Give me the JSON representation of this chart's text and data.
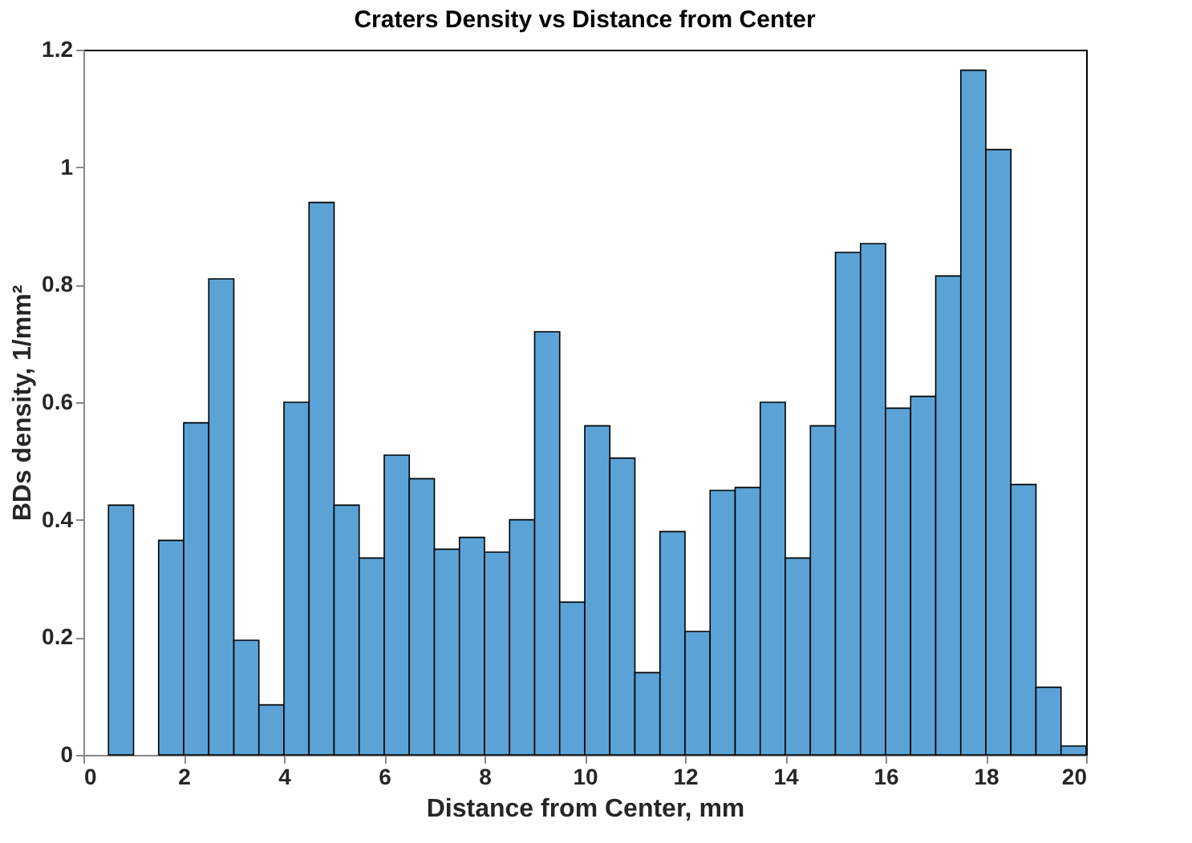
{
  "chart_data": {
    "type": "histogram",
    "title": "Craters Density vs Distance from Center",
    "xlabel": "Distance from Center, mm",
    "ylabel": "BDs density, 1/mm²",
    "color": "#5ba3d6",
    "bins": [
      0,
      0.5,
      1,
      1.5,
      2,
      2.5,
      3,
      3.5,
      4,
      4.5,
      5,
      5.5,
      6,
      6.5,
      7,
      7.5,
      8,
      8.5,
      9,
      9.5,
      10,
      10.5,
      11,
      11.5,
      12,
      12.5,
      13,
      13.5,
      14,
      14.5,
      15,
      15.5,
      16,
      16.5,
      17,
      17.5,
      18,
      18.5,
      19,
      19.5,
      20
    ],
    "values": [
      0,
      0.425,
      0,
      0.365,
      0.565,
      0.81,
      0.195,
      0.085,
      0.6,
      0.94,
      0.425,
      0.335,
      0.51,
      0.47,
      0.35,
      0.37,
      0.345,
      0.4,
      0.72,
      0.26,
      0.56,
      0.505,
      0.14,
      0.38,
      0.21,
      0.45,
      0.455,
      0.6,
      0.335,
      0.56,
      0.855,
      0.87,
      0.59,
      0.61,
      0.815,
      1.165,
      1.03,
      0.46,
      0.115,
      0.015
    ],
    "xlim": [
      0,
      20
    ],
    "xticks": [
      0,
      2,
      4,
      6,
      8,
      10,
      12,
      14,
      16,
      18,
      20
    ],
    "ylim": [
      0,
      1.2
    ],
    "yticks": [
      0,
      0.2,
      0.4,
      0.6,
      0.8,
      1,
      1.2
    ],
    "grid": false
  }
}
